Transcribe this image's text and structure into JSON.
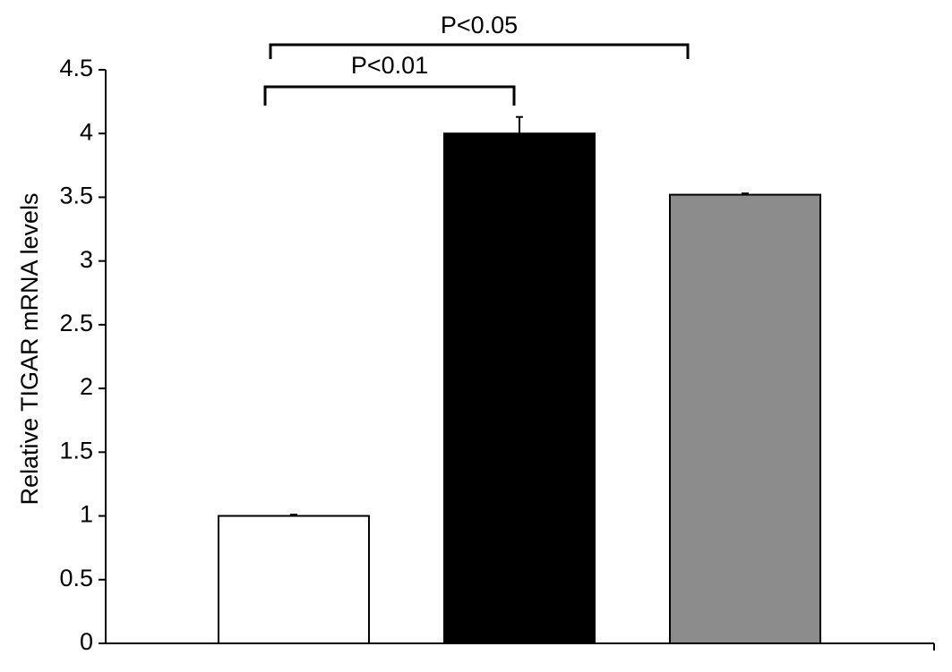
{
  "chart_data": {
    "type": "bar",
    "y_label": "Relative TIGAR mRNA levels",
    "categories": [
      null,
      null,
      null
    ],
    "values": [
      1,
      4,
      3.52
    ],
    "errors": [
      0.01,
      0.13,
      0.01
    ],
    "colors": [
      "#ffffff",
      "#000000",
      "#8c8c8c"
    ],
    "ylim": [
      0,
      4.5
    ],
    "yticks": [
      0,
      0.5,
      1,
      1.5,
      2,
      2.5,
      3,
      3.5,
      4,
      4.5
    ],
    "grid": false,
    "annotations": [
      "P<0.01",
      "P<0.05"
    ]
  }
}
